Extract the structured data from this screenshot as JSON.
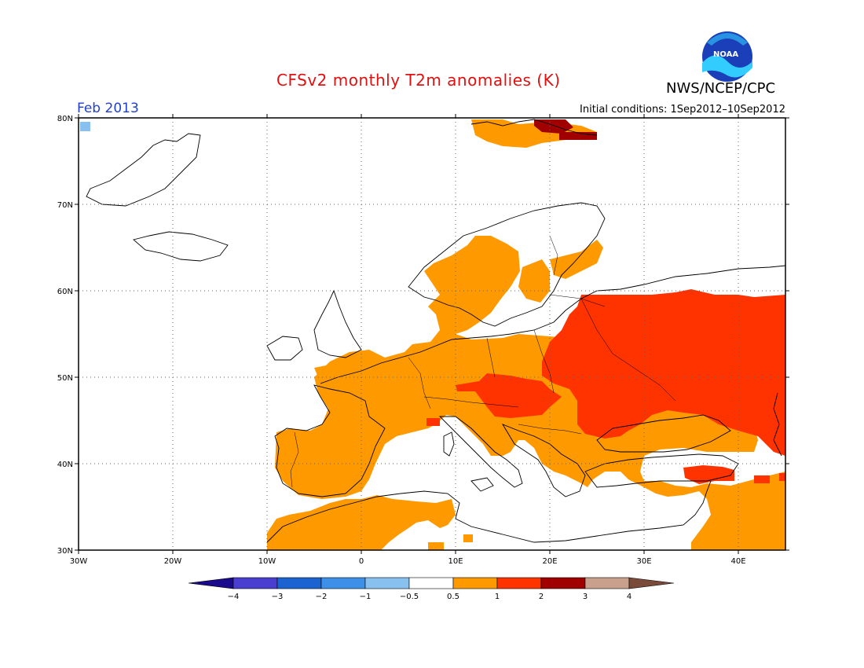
{
  "header": {
    "title": "CFSv2 monthly T2m anomalies (K)",
    "organization": "NWS/NCEP/CPC",
    "period": "Feb 2013",
    "initial_conditions": "Initial conditions: 1Sep2012–10Sep2012",
    "logo_text": "NOAA"
  },
  "map": {
    "lon_ticks": [
      "30W",
      "20W",
      "10W",
      "0",
      "10E",
      "20E",
      "30E",
      "40E"
    ],
    "lat_ticks": [
      "30N",
      "40N",
      "50N",
      "60N",
      "70N",
      "80N"
    ],
    "extent": {
      "lon": [
        -30,
        45
      ],
      "lat": [
        30,
        80
      ]
    },
    "grid": "dotted",
    "anomaly_regions": [
      {
        "name": "western-europe",
        "category": "0.5 to 1",
        "color": "#ff9900"
      },
      {
        "name": "central-europe",
        "category": "1 to 2",
        "color": "#ff3300"
      },
      {
        "name": "eastern-europe-russia",
        "category": "1 to 2",
        "color": "#ff3300"
      },
      {
        "name": "svalbard",
        "category": "2 to 3",
        "color": "#a00000"
      }
    ]
  },
  "colorbar": {
    "labels": [
      "−4",
      "−3",
      "−2",
      "−1",
      "−0.5",
      "0.5",
      "1",
      "2",
      "3",
      "4"
    ],
    "colors": [
      "#1a0b8c",
      "#4a3ed0",
      "#1a63d1",
      "#3d8fe8",
      "#88c0f0",
      "#ffffff",
      "#ff9900",
      "#ff3300",
      "#a00000",
      "#c8a08c",
      "#7a4a3a"
    ]
  }
}
